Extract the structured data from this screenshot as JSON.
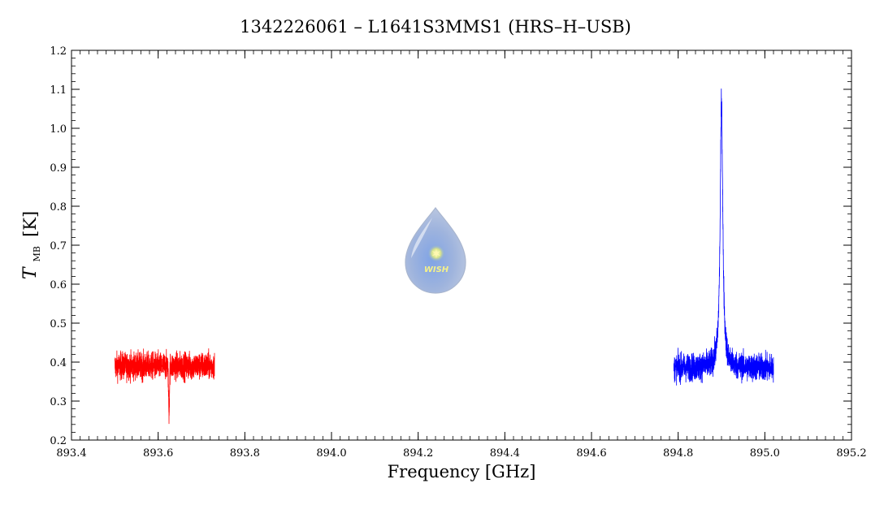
{
  "chart_data": {
    "type": "line",
    "title": "1342226061 – L1641S3MMS1 (HRS–H–USB)",
    "xlabel": "Frequency [GHz]",
    "ylabel": {
      "symbol": "T",
      "subscript": "MB",
      "unit": "[K]"
    },
    "xlim": [
      893.4,
      895.2
    ],
    "ylim": [
      0.2,
      1.2
    ],
    "x_ticks": [
      "893.4",
      "893.6",
      "893.8",
      "894.0",
      "894.2",
      "894.4",
      "894.6",
      "894.8",
      "895.0",
      "895.2"
    ],
    "y_ticks": [
      "0.2",
      "0.3",
      "0.4",
      "0.5",
      "0.6",
      "0.7",
      "0.8",
      "0.9",
      "1.0",
      "1.1",
      "1.2"
    ],
    "x_tick_values": [
      893.4,
      893.6,
      893.8,
      894.0,
      894.2,
      894.4,
      894.6,
      894.8,
      895.0,
      895.2
    ],
    "y_tick_values": [
      0.2,
      0.3,
      0.4,
      0.5,
      0.6,
      0.7,
      0.8,
      0.9,
      1.0,
      1.1,
      1.2
    ],
    "grid": false,
    "series": [
      {
        "color": "#ff0000",
        "x_range": [
          893.5,
          893.73
        ],
        "baseline": 0.39,
        "noise": 0.02,
        "features": [
          {
            "type": "absorption",
            "center": 893.625,
            "depth": 0.12,
            "width": 0.0015
          }
        ]
      },
      {
        "color": "#0000ff",
        "x_range": [
          894.79,
          895.02
        ],
        "baseline": 0.385,
        "noise": 0.02,
        "features": [
          {
            "type": "emission",
            "center": 894.9,
            "peak": 1.08,
            "width": 0.0035
          }
        ]
      }
    ],
    "logo": {
      "text": "WISH"
    }
  }
}
